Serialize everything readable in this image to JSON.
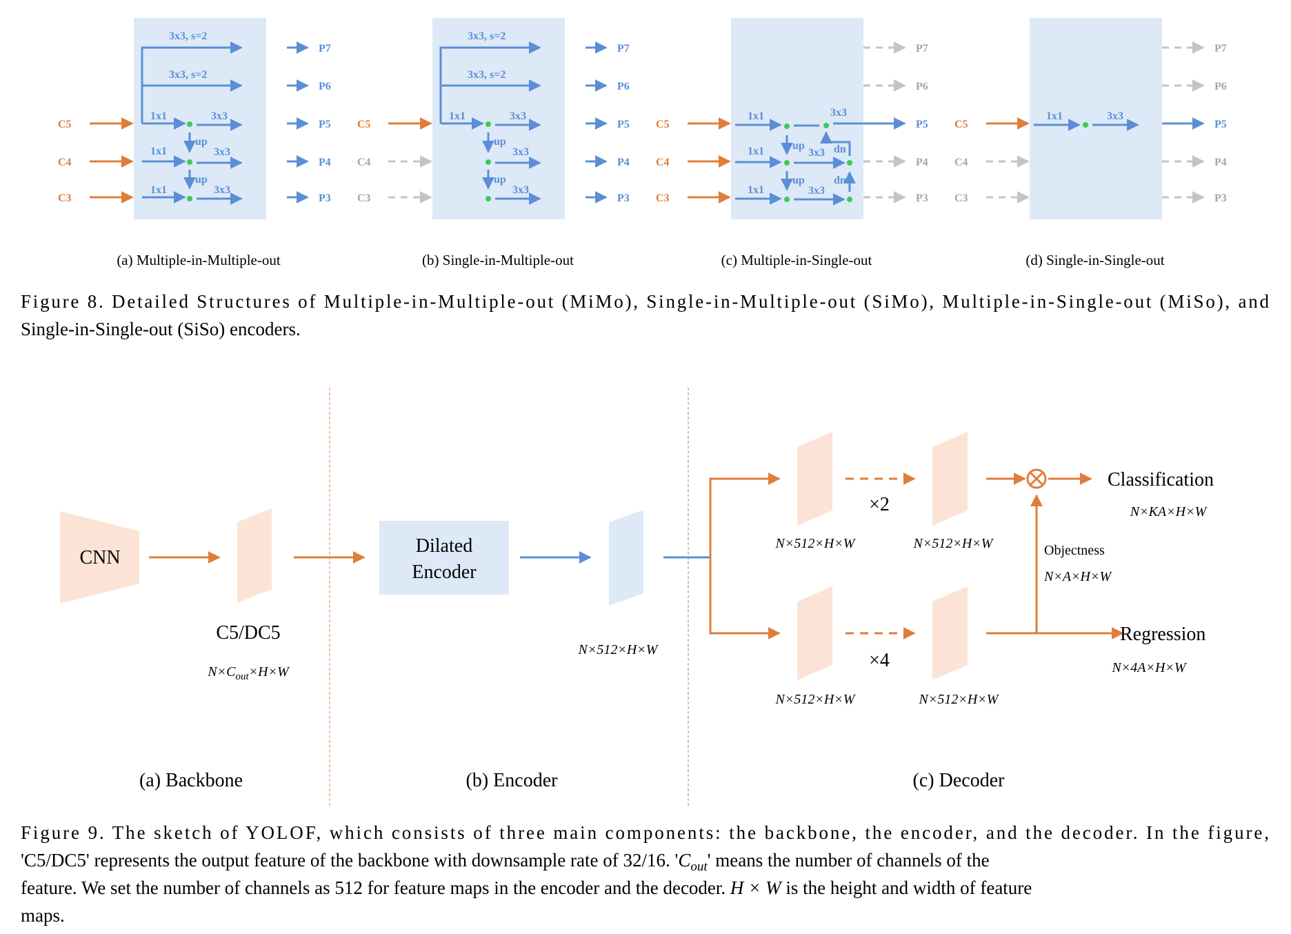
{
  "figure8": {
    "outputs": [
      "P7",
      "P6",
      "P5",
      "P4",
      "P3"
    ],
    "inputs": [
      "C5",
      "C4",
      "C3"
    ],
    "ops": {
      "conv_s2": "3x3, s=2",
      "lateral": "1x1",
      "conv3": "3x3",
      "up": "up",
      "dn": "dn"
    },
    "subcaptions": [
      "(a) Multiple-in-Multiple-out",
      "(b) Single-in-Multiple-out",
      "(c) Multiple-in-Single-out",
      "(d) Single-in-Single-out"
    ],
    "caption_line1": "Figure 8. Detailed Structures of Multiple-in-Multiple-out (MiMo), Single-in-Multiple-out (SiMo), Multiple-in-Single-out (MiSo), and",
    "caption_line2": "Single-in-Single-out (SiSo) encoders."
  },
  "figure9": {
    "cnn_label": "CNN",
    "backbone_feature": "C5/DC5",
    "backbone_dim": {
      "pre": "N×C",
      "sub": "out",
      "post": "×H×W"
    },
    "encoder_label_1": "Dilated",
    "encoder_label_2": "Encoder",
    "encoder_dim": "N×512×H×W",
    "decoder_dims": [
      "N×512×H×W",
      "N×512×H×W",
      "N×512×H×W",
      "N×512×H×W"
    ],
    "times2": "×2",
    "times4": "×4",
    "otimes": "⊗",
    "classification": "Classification",
    "classification_dim": "N×KA×H×W",
    "objectness": "Objectness",
    "objectness_dim": "N×A×H×W",
    "regression": "Regression",
    "regression_dim": "N×4A×H×W",
    "subcaptions": [
      "(a) Backbone",
      "(b) Encoder",
      "(c) Decoder"
    ],
    "caption_lines": [
      "Figure 9. The sketch of YOLOF, which consists of three main components: the backbone, the encoder, and the decoder. In the figure,",
      "'C5/DC5' represents the output feature of the backbone with downsample rate of 32/16. '",
      "' means the number of channels of the",
      "feature. We set the number of channels as 512 for feature maps in the encoder and the decoder. ",
      " is the height and width of feature",
      "maps."
    ],
    "caption_math": {
      "c": "C",
      "c_sub": "out",
      "hw": "H × W"
    }
  },
  "colors": {
    "blue": "#5b8ed6",
    "orange": "#e07d3a",
    "green": "#3fca55",
    "box_fill": "#dde9f7",
    "feature_orange": "#fbe4d5",
    "feature_blue": "#dde9f7"
  }
}
